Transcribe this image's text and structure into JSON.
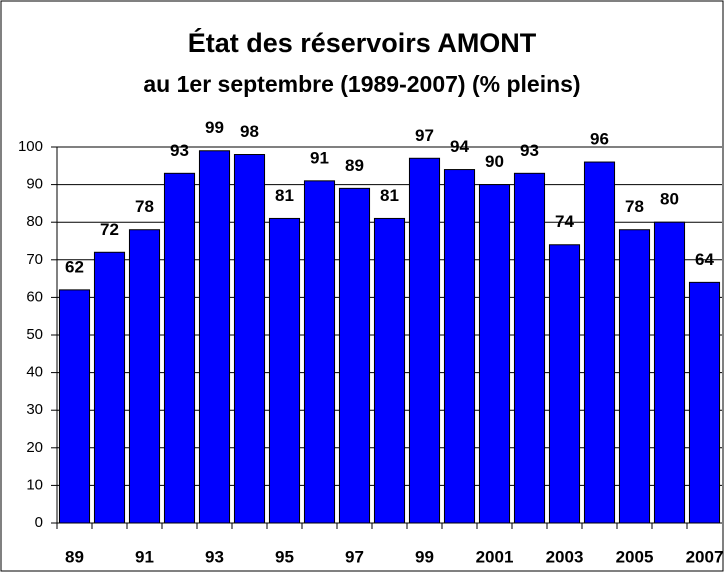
{
  "chart_data": {
    "type": "bar",
    "title": [
      "État des réservoirs AMONT",
      "au 1er septembre (1989-2007)  (% pleins)"
    ],
    "categories": [
      "89",
      null,
      "91",
      null,
      "93",
      null,
      "95",
      null,
      "97",
      null,
      "99",
      null,
      "2001",
      null,
      "2003",
      null,
      "2005",
      null,
      "2007"
    ],
    "values": [
      62,
      72,
      78,
      93,
      99,
      98,
      81,
      91,
      89,
      81,
      97,
      94,
      90,
      93,
      74,
      96,
      78,
      80,
      64
    ],
    "color": "#0000ff",
    "ylim": [
      0,
      100
    ],
    "yticks": [
      0,
      10,
      20,
      30,
      40,
      50,
      60,
      70,
      80,
      90,
      100
    ],
    "grid": true
  }
}
